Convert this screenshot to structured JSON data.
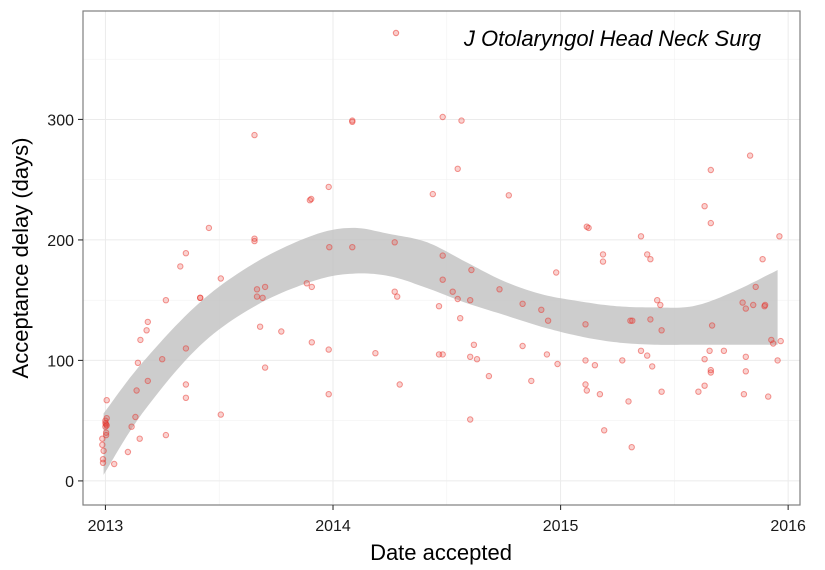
{
  "chart_data": {
    "type": "scatter",
    "title": "",
    "xlabel": "Date accepted",
    "ylabel": "Acceptance delay (days)",
    "x_ticks": [
      "2013",
      "2014",
      "2015",
      "2016"
    ],
    "y_ticks": [
      "0",
      "100",
      "200",
      "300"
    ],
    "xlim": [
      "2012-11-26",
      "2016-01-20"
    ],
    "ylim": [
      -20,
      390
    ],
    "grid": true,
    "legend_position": "top-right",
    "series": [
      {
        "name": "J Otolaryngol Head Neck Surg",
        "color": "#e8322a",
        "points": [
          [
            "2012-12-27",
            35
          ],
          [
            "2012-12-27",
            30
          ],
          [
            "2012-12-28",
            18
          ],
          [
            "2012-12-28",
            15
          ],
          [
            "2012-12-29",
            25
          ],
          [
            "2013-01-01",
            50
          ],
          [
            "2013-01-01",
            45
          ],
          [
            "2013-01-01",
            48
          ],
          [
            "2013-01-02",
            40
          ],
          [
            "2013-01-02",
            38
          ],
          [
            "2013-01-02",
            47
          ],
          [
            "2013-01-03",
            67
          ],
          [
            "2013-01-03",
            46
          ],
          [
            "2013-01-03",
            52
          ],
          [
            "2013-01-15",
            14
          ],
          [
            "2013-02-06",
            24
          ],
          [
            "2013-02-12",
            45
          ],
          [
            "2013-02-18",
            53
          ],
          [
            "2013-02-20",
            75
          ],
          [
            "2013-02-25",
            35
          ],
          [
            "2013-02-26",
            117
          ],
          [
            "2013-03-08",
            125
          ],
          [
            "2013-03-10",
            83
          ],
          [
            "2013-03-10",
            132
          ],
          [
            "2013-02-22",
            98
          ],
          [
            "2013-04-02",
            101
          ],
          [
            "2013-04-08",
            150
          ],
          [
            "2013-04-08",
            38
          ],
          [
            "2013-05-01",
            178
          ],
          [
            "2013-05-10",
            189
          ],
          [
            "2013-05-10",
            80
          ],
          [
            "2013-05-10",
            69
          ],
          [
            "2013-05-10",
            110
          ],
          [
            "2013-06-02",
            152
          ],
          [
            "2013-06-02",
            152
          ],
          [
            "2013-06-16",
            210
          ],
          [
            "2013-07-05",
            168
          ],
          [
            "2013-07-05",
            55
          ],
          [
            "2013-08-28",
            287
          ],
          [
            "2013-08-28",
            201
          ],
          [
            "2013-08-28",
            199
          ],
          [
            "2013-09-01",
            159
          ],
          [
            "2013-09-01",
            153
          ],
          [
            "2013-09-06",
            128
          ],
          [
            "2013-09-10",
            152
          ],
          [
            "2013-09-14",
            94
          ],
          [
            "2013-09-14",
            161
          ],
          [
            "2013-10-10",
            124
          ],
          [
            "2013-11-20",
            164
          ],
          [
            "2013-11-25",
            233
          ],
          [
            "2013-11-27",
            234
          ],
          [
            "2013-11-28",
            161
          ],
          [
            "2013-11-28",
            115
          ],
          [
            "2013-12-25",
            244
          ],
          [
            "2013-12-25",
            72
          ],
          [
            "2013-12-25",
            109
          ],
          [
            "2013-12-26",
            194
          ],
          [
            "2014-02-01",
            299
          ],
          [
            "2014-02-01",
            298
          ],
          [
            "2014-02-01",
            194
          ],
          [
            "2014-03-10",
            106
          ],
          [
            "2014-04-10",
            198
          ],
          [
            "2014-04-10",
            157
          ],
          [
            "2014-04-14",
            153
          ],
          [
            "2014-04-18",
            80
          ],
          [
            "2014-06-10",
            238
          ],
          [
            "2014-06-20",
            145
          ],
          [
            "2014-06-20",
            105
          ],
          [
            "2014-06-26",
            105
          ],
          [
            "2014-06-26",
            187
          ],
          [
            "2014-06-26",
            167
          ],
          [
            "2014-06-26",
            302
          ],
          [
            "2014-07-12",
            157
          ],
          [
            "2014-07-20",
            259
          ],
          [
            "2014-07-20",
            151
          ],
          [
            "2014-07-24",
            135
          ],
          [
            "2014-07-26",
            299
          ],
          [
            "2014-08-09",
            103
          ],
          [
            "2014-08-09",
            51
          ],
          [
            "2014-08-09",
            150
          ],
          [
            "2014-08-11",
            175
          ],
          [
            "2014-08-15",
            113
          ],
          [
            "2014-08-20",
            101
          ],
          [
            "2014-09-08",
            87
          ],
          [
            "2014-09-25",
            159
          ],
          [
            "2014-10-10",
            237
          ],
          [
            "2014-11-01",
            112
          ],
          [
            "2014-11-01",
            147
          ],
          [
            "2014-11-15",
            83
          ],
          [
            "2014-12-01",
            142
          ],
          [
            "2014-12-10",
            105
          ],
          [
            "2014-12-12",
            133
          ],
          [
            "2014-12-25",
            173
          ],
          [
            "2014-12-27",
            97
          ],
          [
            "2015-02-12",
            211
          ],
          [
            "2015-02-15",
            210
          ],
          [
            "2015-02-10",
            130
          ],
          [
            "2015-02-10",
            100
          ],
          [
            "2015-02-10",
            80
          ],
          [
            "2015-02-12",
            75
          ],
          [
            "2015-02-25",
            96
          ],
          [
            "2015-03-05",
            72
          ],
          [
            "2015-03-10",
            182
          ],
          [
            "2015-03-10",
            188
          ],
          [
            "2015-03-12",
            42
          ],
          [
            "2015-04-10",
            100
          ],
          [
            "2015-04-20",
            66
          ],
          [
            "2015-04-23",
            133
          ],
          [
            "2015-04-25",
            28
          ],
          [
            "2015-04-26",
            133
          ],
          [
            "2015-05-10",
            203
          ],
          [
            "2015-05-10",
            108
          ],
          [
            "2015-05-20",
            188
          ],
          [
            "2015-05-20",
            104
          ],
          [
            "2015-05-25",
            134
          ],
          [
            "2015-05-25",
            184
          ],
          [
            "2015-05-28",
            95
          ],
          [
            "2015-06-05",
            150
          ],
          [
            "2015-06-10",
            146
          ],
          [
            "2015-06-12",
            74
          ],
          [
            "2015-06-12",
            125
          ],
          [
            "2015-08-10",
            74
          ],
          [
            "2015-08-20",
            101
          ],
          [
            "2015-08-20",
            228
          ],
          [
            "2015-08-20",
            79
          ],
          [
            "2015-08-28",
            108
          ],
          [
            "2015-08-30",
            214
          ],
          [
            "2015-08-30",
            258
          ],
          [
            "2015-08-30",
            92
          ],
          [
            "2015-08-30",
            90
          ],
          [
            "2015-09-01",
            129
          ],
          [
            "2015-09-20",
            108
          ],
          [
            "2015-10-20",
            148
          ],
          [
            "2015-10-22",
            72
          ],
          [
            "2015-10-25",
            91
          ],
          [
            "2015-10-25",
            103
          ],
          [
            "2015-10-25",
            143
          ],
          [
            "2015-11-01",
            270
          ],
          [
            "2015-11-06",
            146
          ],
          [
            "2015-11-10",
            161
          ],
          [
            "2015-11-21",
            184
          ],
          [
            "2015-11-24",
            145
          ],
          [
            "2015-11-25",
            146
          ],
          [
            "2015-11-30",
            70
          ],
          [
            "2015-12-05",
            117
          ],
          [
            "2015-12-08",
            114
          ],
          [
            "2015-12-15",
            100
          ],
          [
            "2015-12-18",
            203
          ],
          [
            "2015-12-20",
            116
          ]
        ]
      }
    ],
    "smooth_ribbon": {
      "color": "#bfbfbf",
      "x": [
        "2012-12-29",
        "2013-03-01",
        "2013-06-01",
        "2013-09-01",
        "2013-12-01",
        "2014-02-01",
        "2014-04-01",
        "2014-06-01",
        "2014-08-01",
        "2014-10-01",
        "2014-12-01",
        "2015-02-01",
        "2015-04-01",
        "2015-06-01",
        "2015-08-01",
        "2015-10-01",
        "2015-12-15"
      ],
      "upper": [
        56,
        98,
        148,
        182,
        204,
        210,
        205,
        198,
        182,
        166,
        155,
        149,
        145,
        144,
        145,
        156,
        175
      ],
      "lower": [
        5,
        56,
        112,
        146,
        166,
        172,
        170,
        160,
        148,
        138,
        128,
        120,
        115,
        113,
        113,
        113,
        113
      ]
    }
  }
}
